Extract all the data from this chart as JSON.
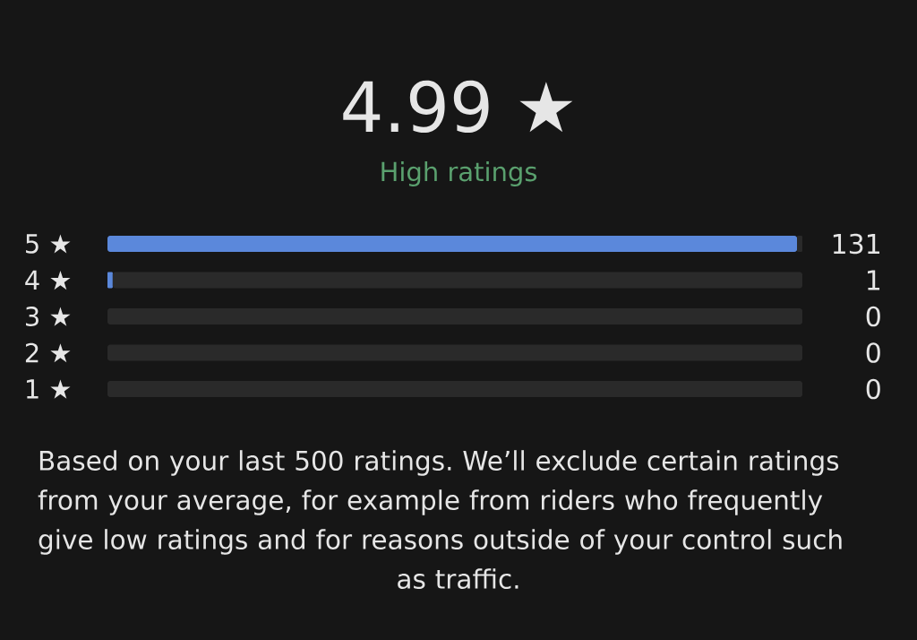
{
  "chart_data": {
    "type": "bar",
    "orientation": "horizontal",
    "stacked": true,
    "title": "4.99 ★",
    "subtitle": "High ratings",
    "categories": [
      "5 ★",
      "4 ★",
      "3 ★",
      "2 ★",
      "1 ★"
    ],
    "series": [
      {
        "color": "#5b88db",
        "values": [
          131,
          1,
          0,
          0,
          0
        ],
        "value_labels": [
          "131",
          "1",
          "0",
          "0",
          "0"
        ]
      },
      {
        "color": "#2a2a2a",
        "values": [
          1,
          131,
          132,
          132,
          132
        ]
      }
    ],
    "xlim": [
      0,
      132
    ],
    "tick_labels": "y",
    "annotations": [
      "Based on your last 500 ratings. We’ll exclude certain ratings from your average, for example from riders who frequently give low ratings and for reasons outside of your control such as traffic."
    ]
  }
}
